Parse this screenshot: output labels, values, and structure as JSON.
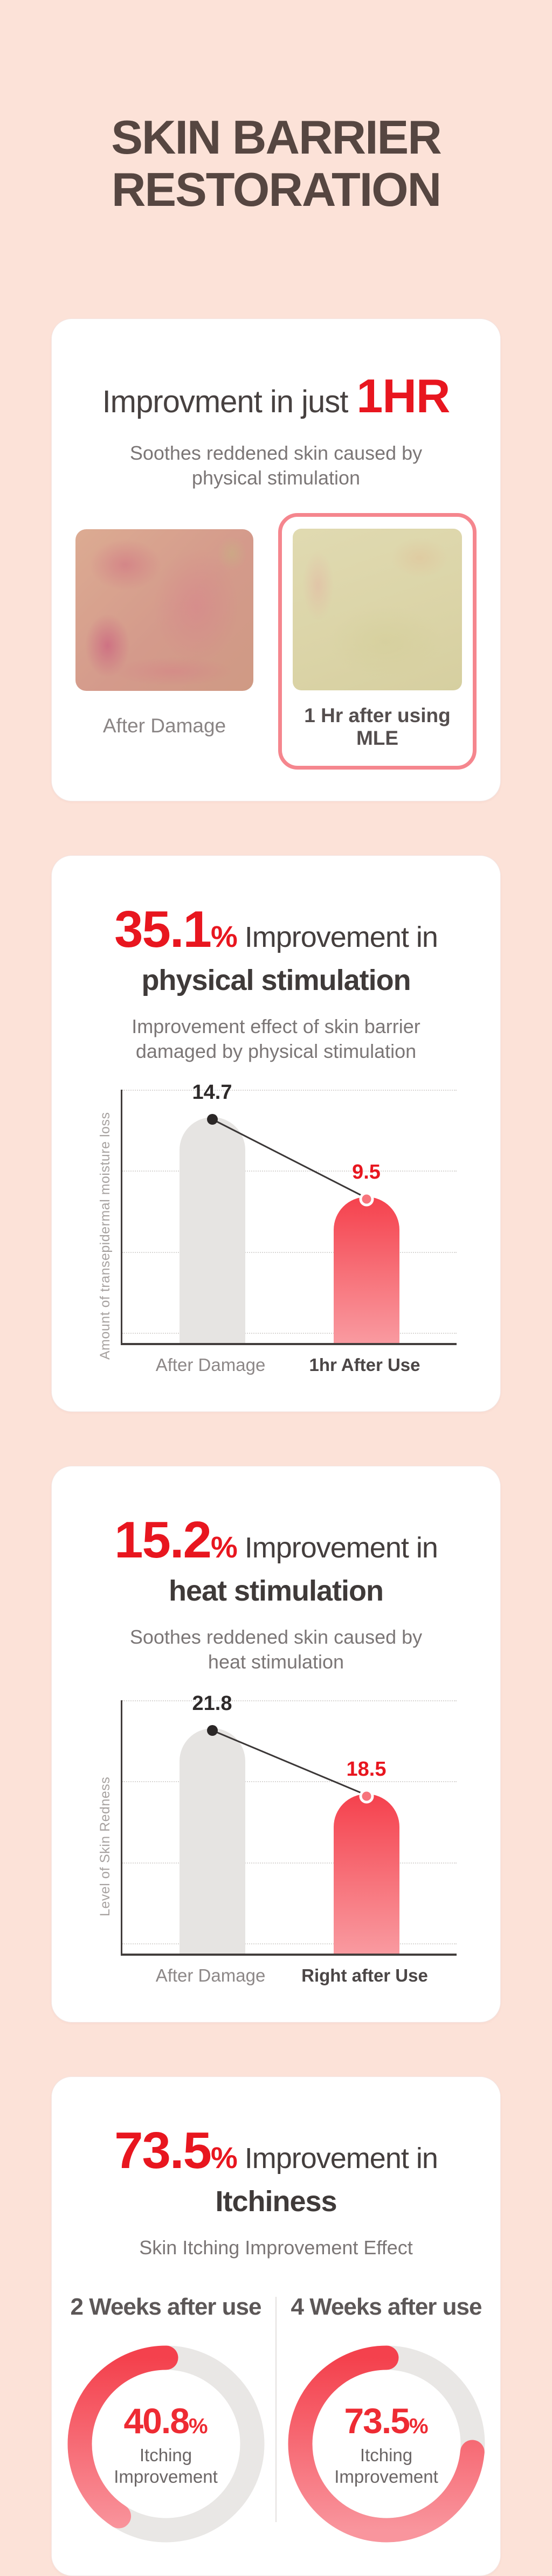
{
  "page": {
    "background": "#fce2d8",
    "accent_red": "#e8161f"
  },
  "title": {
    "line1": "SKIN BARRIER",
    "line2": "RESTORATION"
  },
  "cards": {
    "hero": {
      "heading_prefix": "Improvment in just",
      "heading_highlight": "1HR",
      "subtitle": "Soothes reddened skin caused by\nphysical stimulation",
      "before_label": "After Damage",
      "after_label": "1 Hr after using MLE"
    },
    "physical": {
      "pct": "35.1",
      "pct_unit": "%",
      "heading_rest": "Improvement in",
      "heading_bold": "physical stimulation",
      "subtitle": "Improvement effect of skin barrier\ndamaged by physical stimulation"
    },
    "heat": {
      "pct": "15.2",
      "pct_unit": "%",
      "heading_rest": "Improvement in",
      "heading_bold": "heat stimulation",
      "subtitle": "Soothes reddened skin caused by\nheat stimulation"
    },
    "itch": {
      "pct": "73.5",
      "pct_unit": "%",
      "heading_rest": "Improvement in",
      "heading_bold": "Itchiness",
      "subtitle": "Skin Itching Improvement Effect"
    }
  },
  "chart_data": [
    {
      "id": "moisture-loss",
      "type": "bar",
      "title": "35.1% Improvement in physical stimulation",
      "categories": [
        "After Damage",
        "1hr After Use"
      ],
      "values": [
        14.7,
        9.5
      ],
      "xlabel": "",
      "ylabel": "Amount of transepidermal moisture loss",
      "ylim": [
        0,
        16.5
      ],
      "grid": true,
      "legend": "none",
      "bar_style": [
        "neutral",
        "accent"
      ],
      "value_labels": [
        "14.7",
        "9.5"
      ],
      "annotation": "connector line between bar tops with dot markers"
    },
    {
      "id": "skin-redness",
      "type": "bar",
      "title": "15.2% Improvement in heat stimulation",
      "categories": [
        "After Damage",
        "Right after Use"
      ],
      "values": [
        21.8,
        18.5
      ],
      "xlabel": "",
      "ylabel": "Level of Skin Redness",
      "ylim": [
        10.5,
        23.2
      ],
      "grid": true,
      "legend": "none",
      "bar_style": [
        "neutral",
        "accent"
      ],
      "value_labels": [
        "21.8",
        "18.5"
      ],
      "annotation": "connector line between bar tops with dot markers"
    },
    {
      "id": "itching-improvement",
      "type": "donut",
      "title": "73.5% Improvement in Itchiness",
      "charts": [
        {
          "label": "2 Weeks after use",
          "value": 40.8,
          "max": 100,
          "unit": "%",
          "center_text": "Itching\nImprovement"
        },
        {
          "label": "4 Weeks after use",
          "value": 73.5,
          "max": 100,
          "unit": "%",
          "center_text": "Itching\nImprovement"
        }
      ],
      "direction": "counterclockwise from top",
      "legend": "none"
    }
  ],
  "colors": {
    "bar_neutral": "#e6e4e2",
    "bar_accent_top": "#f5414d",
    "bar_accent_bottom": "#f99aa0",
    "value_neutral": "#2e2a2a",
    "value_accent": "#e8161f",
    "dot_neutral": "#2b2727",
    "dot_accent": "#f7747c",
    "connector": "#3b3737",
    "donut_track": "#e9e7e5",
    "donut_arc_start": "#f4414d",
    "donut_arc_end": "#f9959d",
    "panel_border": "#f5868e"
  }
}
